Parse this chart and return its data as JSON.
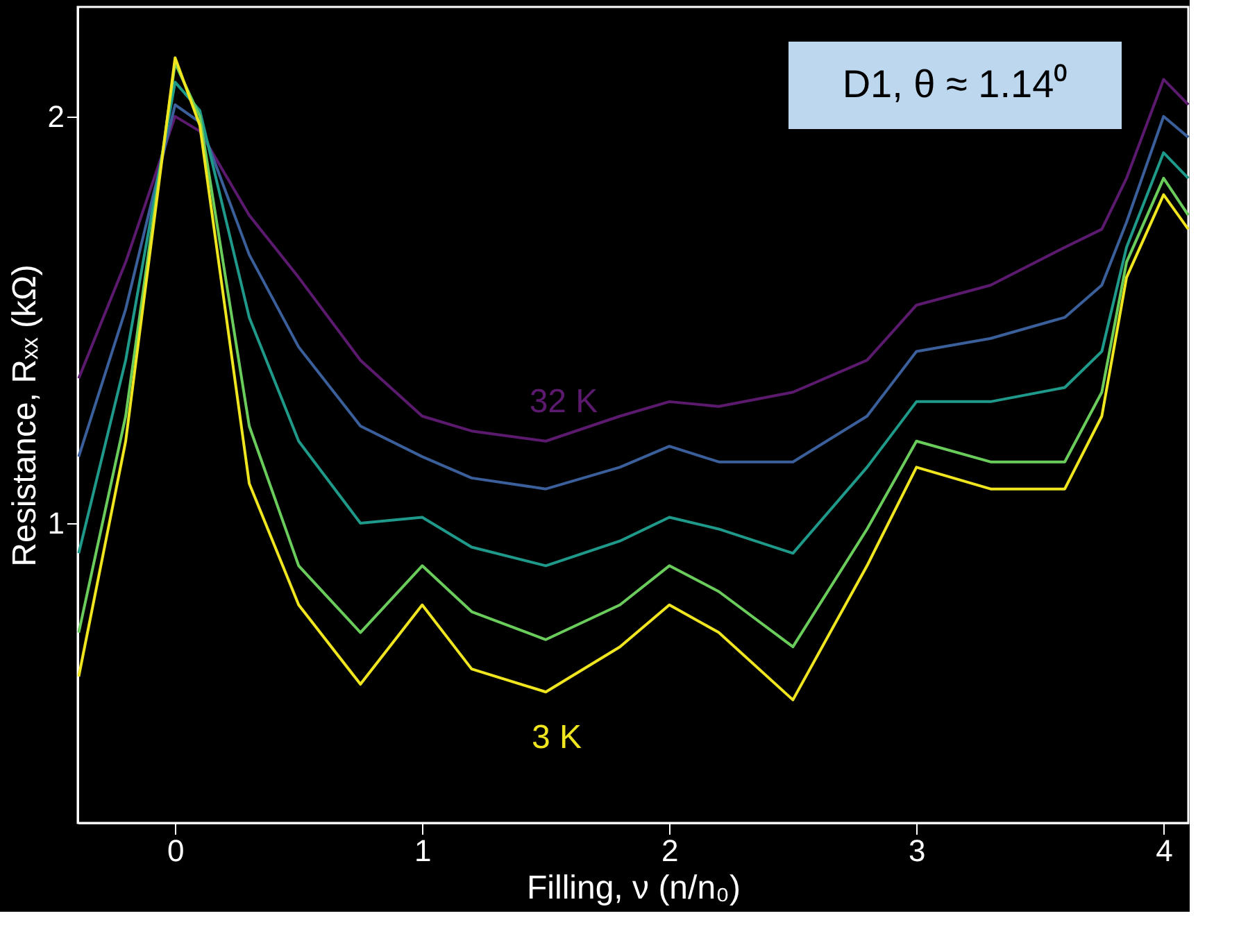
{
  "chart_data": {
    "type": "line",
    "xlabel": "Filling, ν (n/n₀)",
    "ylabel": "Resistance, Rₓₓ (kΩ)",
    "x": [
      -0.39,
      -0.2,
      0,
      0.1,
      0.3,
      0.5,
      0.75,
      1.0,
      1.2,
      1.5,
      1.8,
      2.0,
      2.2,
      2.5,
      2.8,
      3.0,
      3.3,
      3.6,
      3.75,
      3.85,
      4.0,
      4.1
    ],
    "series": [
      {
        "color": "#5b1a6e",
        "values": [
          1.28,
          1.56,
          2.0,
          1.95,
          1.69,
          1.52,
          1.32,
          1.2,
          1.17,
          1.15,
          1.2,
          1.23,
          1.22,
          1.25,
          1.32,
          1.45,
          1.5,
          1.6,
          1.65,
          1.8,
          2.13,
          2.04
        ]
      },
      {
        "color": "#3b5f9a",
        "values": [
          1.12,
          1.44,
          2.04,
          1.98,
          1.58,
          1.35,
          1.18,
          1.12,
          1.08,
          1.06,
          1.1,
          1.14,
          1.11,
          1.11,
          1.2,
          1.34,
          1.37,
          1.42,
          1.5,
          1.67,
          2.0,
          1.93
        ]
      },
      {
        "color": "#1f9a8a",
        "values": [
          0.95,
          1.32,
          2.12,
          2.02,
          1.42,
          1.15,
          1.0,
          1.01,
          0.96,
          0.93,
          0.97,
          1.01,
          0.99,
          0.95,
          1.1,
          1.23,
          1.23,
          1.26,
          1.34,
          1.6,
          1.88,
          1.8
        ]
      },
      {
        "color": "#6acd5b",
        "values": [
          0.83,
          1.2,
          2.19,
          2.0,
          1.18,
          0.93,
          0.83,
          0.93,
          0.86,
          0.82,
          0.87,
          0.93,
          0.89,
          0.81,
          0.99,
          1.15,
          1.11,
          1.11,
          1.25,
          1.56,
          1.8,
          1.69
        ]
      },
      {
        "color": "#f0e620",
        "values": [
          0.77,
          1.15,
          2.21,
          1.97,
          1.07,
          0.87,
          0.76,
          0.87,
          0.78,
          0.75,
          0.81,
          0.87,
          0.83,
          0.74,
          0.93,
          1.1,
          1.06,
          1.06,
          1.2,
          1.52,
          1.75,
          1.65
        ]
      }
    ],
    "xlim": [
      -0.394,
      4.1
    ],
    "xticks": [
      0,
      1,
      2,
      3,
      4
    ],
    "ylim": [
      0.6,
      2.41
    ],
    "yticks": [
      1,
      2
    ],
    "log": true,
    "grid": false,
    "legend": false,
    "line_style": "solid",
    "marker": "none",
    "annotations": [
      "32 K",
      "3 K",
      "D1, θ ≈ 1.14⁰"
    ]
  }
}
